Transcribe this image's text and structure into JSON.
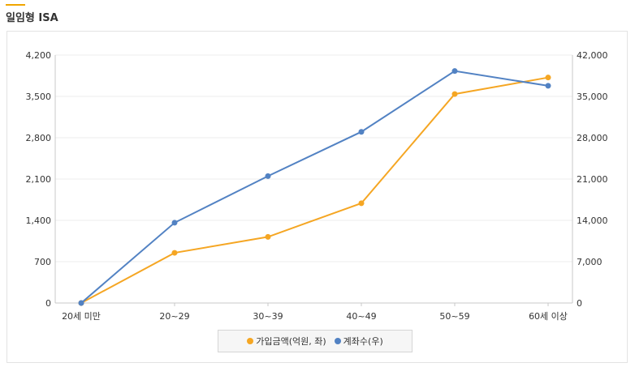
{
  "page": {
    "title": "일임형 ISA",
    "accent": "#f0a500"
  },
  "chart_data": {
    "type": "line",
    "categories": [
      "20세 미만",
      "20~29",
      "30~39",
      "40~49",
      "50~59",
      "60세 이상"
    ],
    "y_left": {
      "ticks": [
        "0",
        "700",
        "1,400",
        "2,100",
        "2,800",
        "3,500",
        "4,200"
      ],
      "range": [
        0,
        4200
      ]
    },
    "y_right": {
      "ticks": [
        "0",
        "7,000",
        "14,000",
        "21,000",
        "28,000",
        "35,000",
        "42,000"
      ],
      "range": [
        0,
        42000
      ]
    },
    "grid": true,
    "legend_position": "bottom",
    "series": [
      {
        "name": "가입금액(억원, 좌)",
        "axis": "left",
        "color": "#f5a623",
        "values": [
          0,
          850,
          1120,
          1690,
          3540,
          3820
        ]
      },
      {
        "name": "계좌수(우)",
        "axis": "right",
        "color": "#5282c3",
        "values": [
          0,
          13600,
          21500,
          29000,
          39300,
          36800
        ]
      }
    ]
  }
}
